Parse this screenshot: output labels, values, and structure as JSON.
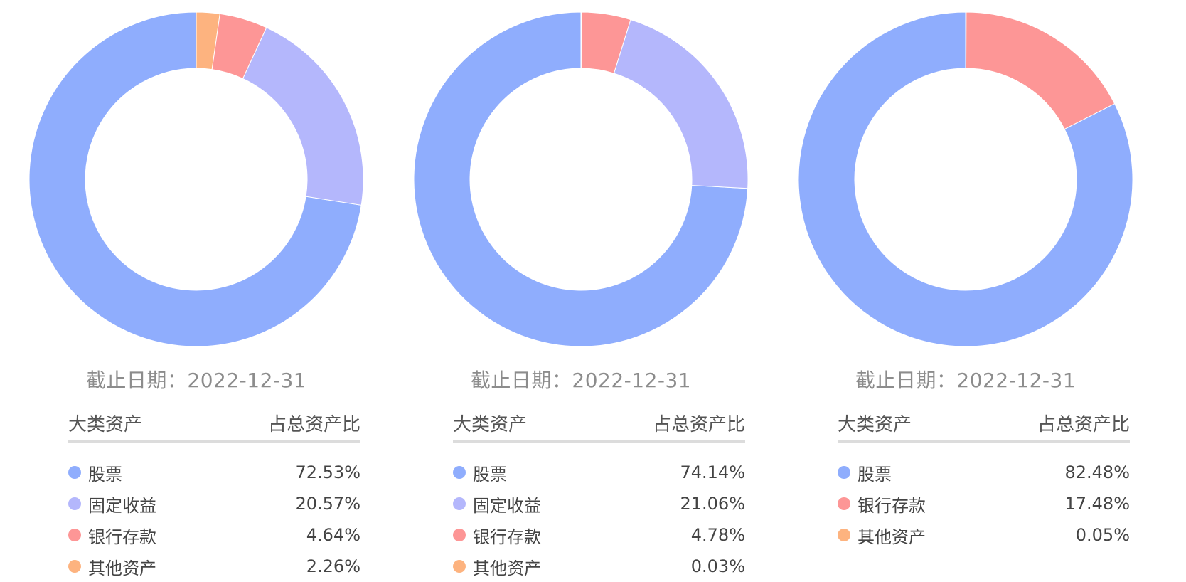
{
  "header": {
    "date_label": "截止日期：",
    "col_asset": "大类资产",
    "col_ratio": "占总资产比"
  },
  "colors": {
    "stock": "#8fadfd",
    "fixed_income": "#b4b7fc",
    "bank_deposit": "#fd9696",
    "other": "#fdb37f"
  },
  "chart_data": [
    {
      "type": "pie",
      "date": "2022-12-31",
      "slices": [
        {
          "label": "股票",
          "value": 72.53,
          "display": "72.53%",
          "color": "#8fadfd"
        },
        {
          "label": "固定收益",
          "value": 20.57,
          "display": "20.57%",
          "color": "#b4b7fc"
        },
        {
          "label": "银行存款",
          "value": 4.64,
          "display": "4.64%",
          "color": "#fd9696"
        },
        {
          "label": "其他资产",
          "value": 2.26,
          "display": "2.26%",
          "color": "#fdb37f"
        }
      ]
    },
    {
      "type": "pie",
      "date": "2022-12-31",
      "slices": [
        {
          "label": "股票",
          "value": 74.14,
          "display": "74.14%",
          "color": "#8fadfd"
        },
        {
          "label": "固定收益",
          "value": 21.06,
          "display": "21.06%",
          "color": "#b4b7fc"
        },
        {
          "label": "银行存款",
          "value": 4.78,
          "display": "4.78%",
          "color": "#fd9696"
        },
        {
          "label": "其他资产",
          "value": 0.03,
          "display": "0.03%",
          "color": "#fdb37f"
        }
      ]
    },
    {
      "type": "pie",
      "date": "2022-12-31",
      "slices": [
        {
          "label": "股票",
          "value": 82.48,
          "display": "82.48%",
          "color": "#8fadfd"
        },
        {
          "label": "银行存款",
          "value": 17.48,
          "display": "17.48%",
          "color": "#fd9696"
        },
        {
          "label": "其他资产",
          "value": 0.05,
          "display": "0.05%",
          "color": "#fdb37f"
        }
      ]
    }
  ]
}
